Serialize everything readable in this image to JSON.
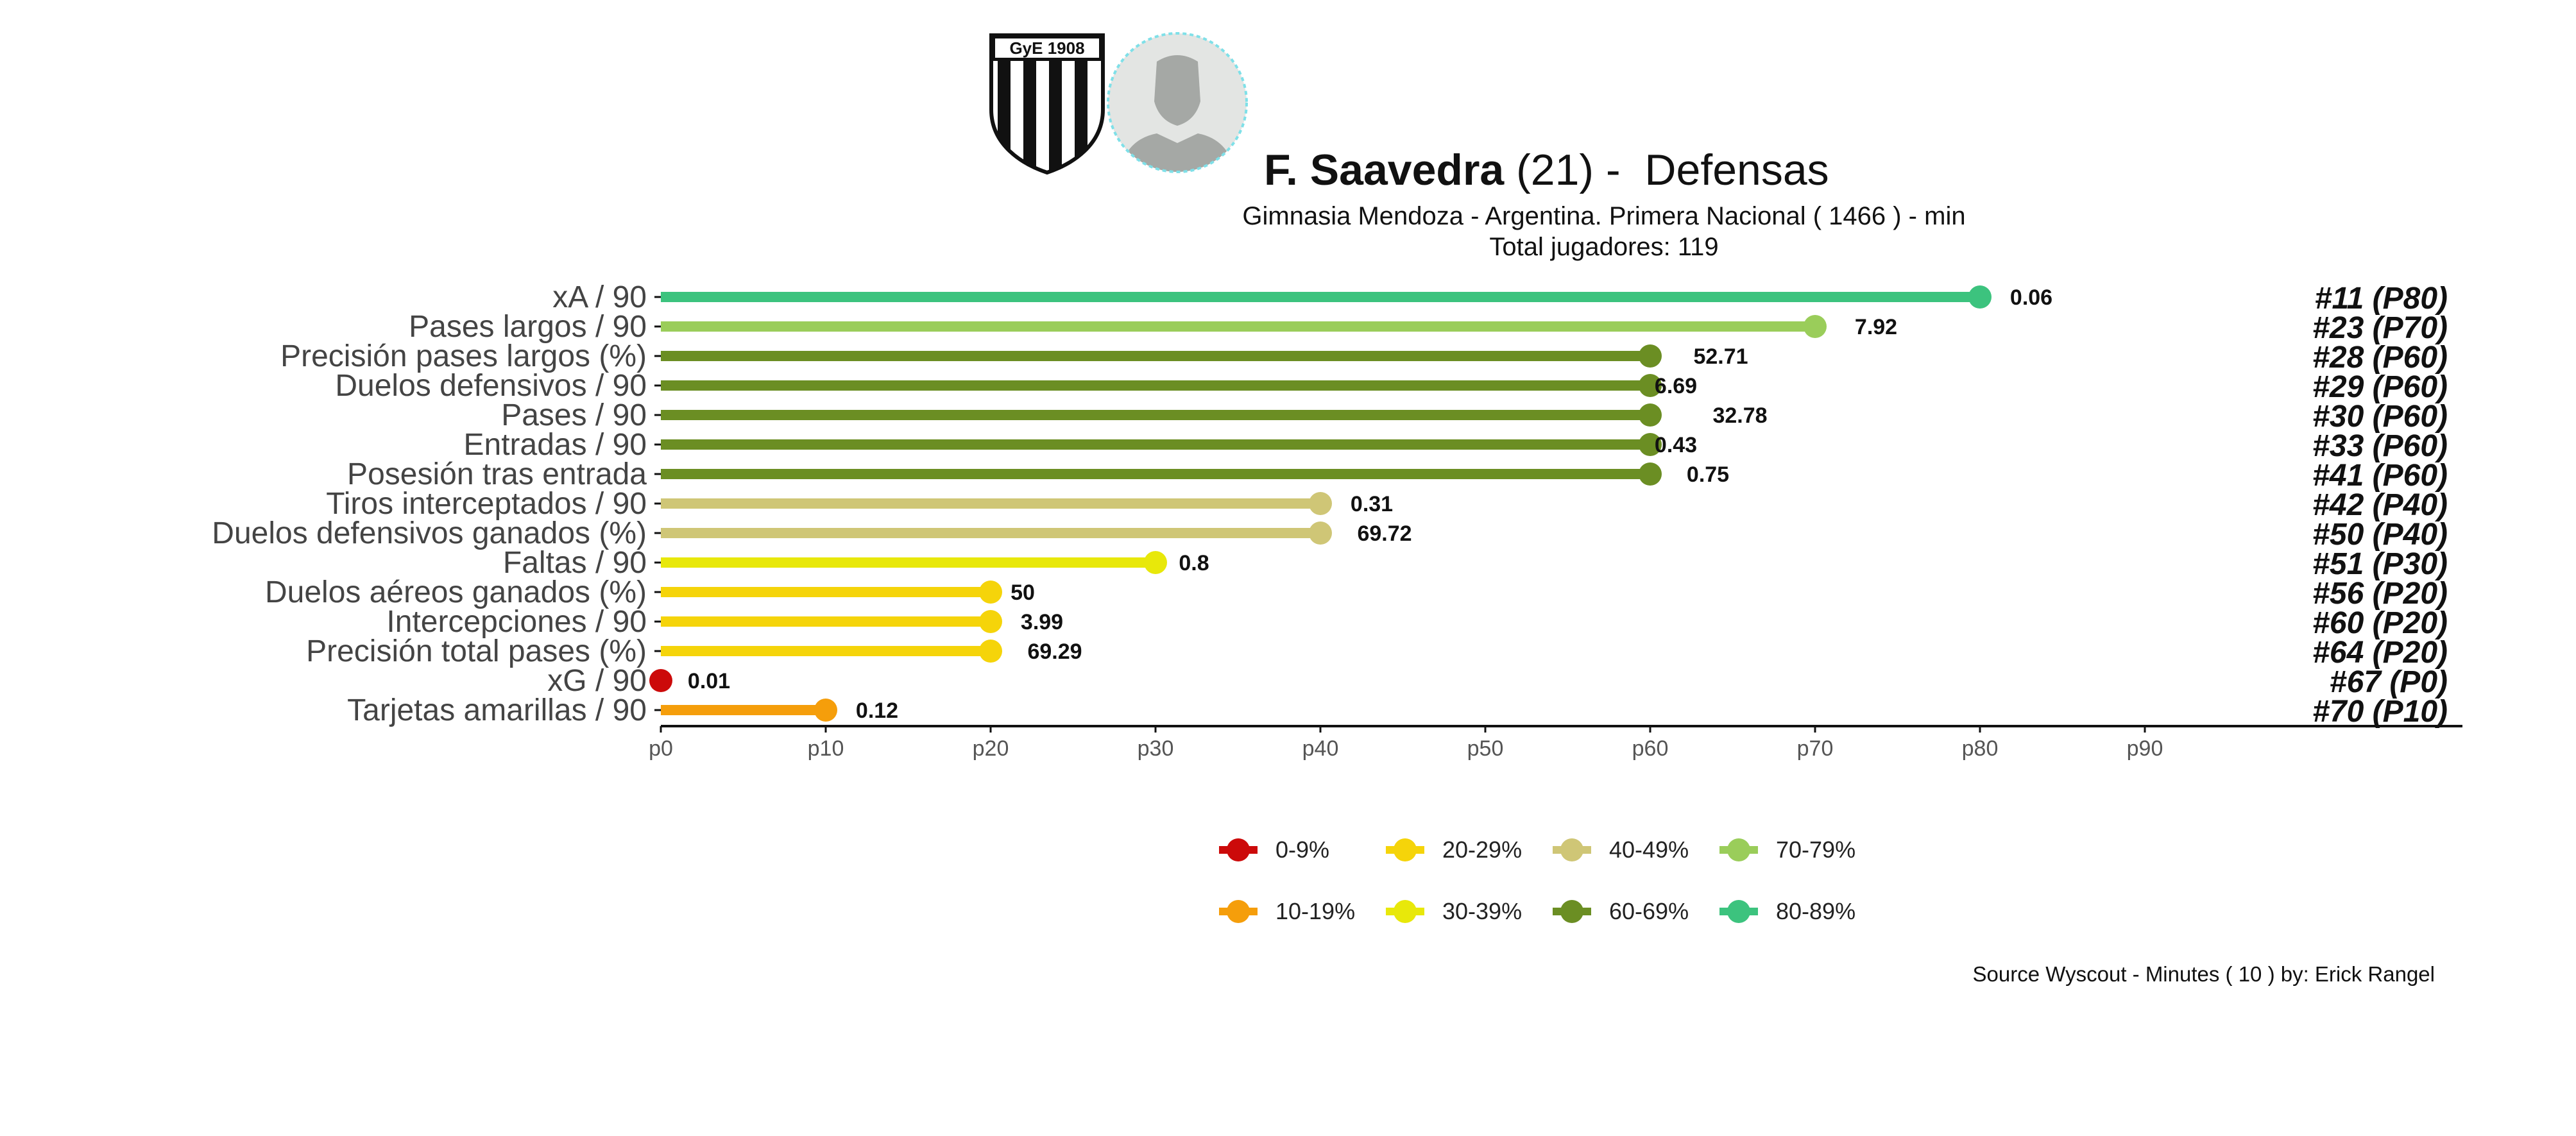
{
  "header": {
    "player_name": "F. Saavedra",
    "player_age": "(21)",
    "separator": " -  ",
    "position": "Defensas",
    "subtitle": "Gimnasia Mendoza  -  Argentina. Primera Nacional  ( 1466 ) - min",
    "total_players": "Total jugadores:  119",
    "club_logo_text": "GyE 1908"
  },
  "chart_data": {
    "type": "bar",
    "categories": [
      "xA / 90",
      "Pases largos / 90",
      "Precisión pases largos (%)",
      "Duelos defensivos / 90",
      "Pases / 90",
      "Entradas / 90",
      "Posesión tras entrada",
      "Tiros interceptados / 90",
      "Duelos defensivos ganados (%)",
      "Faltas / 90",
      "Duelos aéreos ganados (%)",
      "Intercepciones / 90",
      "Precisión total pases (%)",
      "xG / 90",
      "Tarjetas amarillas / 90"
    ],
    "percentiles": [
      80,
      70,
      60,
      60,
      60,
      60,
      60,
      40,
      40,
      30,
      20,
      20,
      20,
      0,
      10
    ],
    "value_labels": [
      "0.06",
      "7.92",
      "52.71",
      "6.69",
      "32.78",
      "0.43",
      "0.75",
      "0.31",
      "69.72",
      "0.8",
      "50",
      "3.99",
      "69.29",
      "0.01",
      "0.12"
    ],
    "rank_labels": [
      "#11 (P80)",
      "#23 (P70)",
      "#28 (P60)",
      "#29 (P60)",
      "#30 (P60)",
      "#33 (P60)",
      "#41 (P60)",
      "#42 (P40)",
      "#50 (P40)",
      "#51 (P30)",
      "#56 (P20)",
      "#60 (P20)",
      "#64 (P20)",
      "#67 (P0)",
      "#70 (P10)"
    ],
    "x_ticks": [
      "p0",
      "p10",
      "p20",
      "p30",
      "p40",
      "p50",
      "p60",
      "p70",
      "p80",
      "p90"
    ],
    "xlim": [
      0,
      109
    ],
    "xlabel": "",
    "ylabel": "",
    "legend": [
      {
        "label": "0-9%",
        "color": "#cc0a0a"
      },
      {
        "label": "10-19%",
        "color": "#f59e0b"
      },
      {
        "label": "20-29%",
        "color": "#f5d40a"
      },
      {
        "label": "30-39%",
        "color": "#e8e80a"
      },
      {
        "label": "40-49%",
        "color": "#cfc676"
      },
      {
        "label": "60-69%",
        "color": "#6b8e23"
      },
      {
        "label": "70-79%",
        "color": "#9acd5a"
      },
      {
        "label": "80-89%",
        "color": "#3cc37e"
      }
    ],
    "legend_position": "bottom"
  },
  "source": "Source Wyscout - Minutes ( 10 ) by: Erick Rangel"
}
